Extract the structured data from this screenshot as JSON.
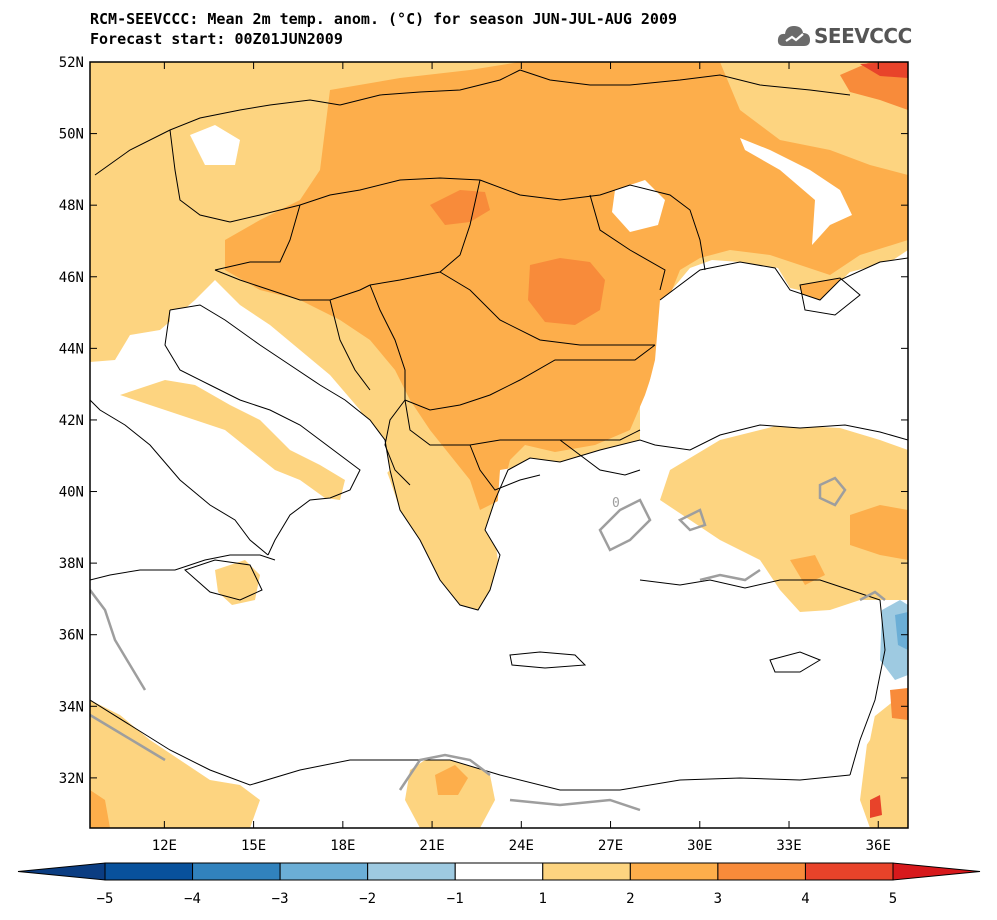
{
  "header": {
    "title_line1": "RCM-SEEVCCC: Mean 2m temp. anom. (°C) for season JUN-JUL-AUG 2009",
    "title_line2": "Forecast start: 00Z01JUN2009",
    "logo_text": "SEEVCCC",
    "logo_icon": "cloud-icon"
  },
  "map": {
    "lon_range": [
      9.5,
      37.0
    ],
    "lat_range": [
      30.6,
      52.0
    ],
    "lat_ticks": [
      {
        "value": 52,
        "label": "52N"
      },
      {
        "value": 50,
        "label": "50N"
      },
      {
        "value": 48,
        "label": "48N"
      },
      {
        "value": 46,
        "label": "46N"
      },
      {
        "value": 44,
        "label": "44N"
      },
      {
        "value": 42,
        "label": "42N"
      },
      {
        "value": 40,
        "label": "40N"
      },
      {
        "value": 38,
        "label": "38N"
      },
      {
        "value": 36,
        "label": "36N"
      },
      {
        "value": 34,
        "label": "34N"
      },
      {
        "value": 32,
        "label": "32N"
      }
    ],
    "lon_ticks": [
      {
        "value": 12,
        "label": "12E"
      },
      {
        "value": 15,
        "label": "15E"
      },
      {
        "value": 18,
        "label": "18E"
      },
      {
        "value": 21,
        "label": "21E"
      },
      {
        "value": 24,
        "label": "24E"
      },
      {
        "value": 27,
        "label": "27E"
      },
      {
        "value": 30,
        "label": "30E"
      },
      {
        "value": 33,
        "label": "33E"
      },
      {
        "value": 36,
        "label": "36E"
      }
    ],
    "contour_label": "0"
  },
  "colorbar": {
    "colors": [
      "#08519c",
      "#3182bd",
      "#6baed6",
      "#9ecae1",
      "#ffffff",
      "#fdd480",
      "#fdae4b",
      "#f88b3a",
      "#e8432a"
    ],
    "end_low": "#0b3d82",
    "end_high": "#d7191c",
    "labels": [
      "−5",
      "−4",
      "−3",
      "−2",
      "−1",
      "1",
      "2",
      "3",
      "4",
      "5"
    ]
  }
}
